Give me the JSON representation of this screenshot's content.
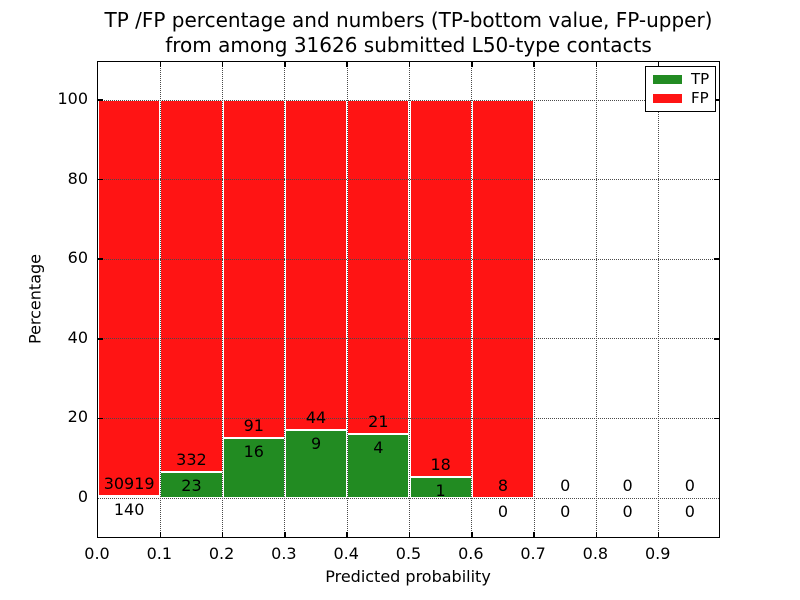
{
  "figure": {
    "title_line1": "TP /FP percentage and numbers (TP-bottom value, FP-upper)",
    "title_line2": "from among 31626 submitted L50-type contacts",
    "xlabel": "Predicted probability",
    "ylabel": "Percentage"
  },
  "legend": {
    "items": [
      {
        "label": "TP",
        "color": "#228b22"
      },
      {
        "label": "FP",
        "color": "#ff1414"
      }
    ]
  },
  "chart_data": {
    "type": "bar",
    "subtype": "stacked-100-percent",
    "title": "TP /FP percentage and numbers (TP-bottom value, FP-upper) from among 31626 submitted L50-type contacts",
    "xlabel": "Predicted probability",
    "ylabel": "Percentage",
    "total_submitted_contacts": 31626,
    "annotation_scheme": "TP count below green/red boundary, FP count above it",
    "bins": [
      {
        "range": [
          0.0,
          0.1
        ],
        "tp": 140,
        "fp": 30919
      },
      {
        "range": [
          0.1,
          0.2
        ],
        "tp": 23,
        "fp": 332
      },
      {
        "range": [
          0.2,
          0.3
        ],
        "tp": 16,
        "fp": 91
      },
      {
        "range": [
          0.3,
          0.4
        ],
        "tp": 9,
        "fp": 44
      },
      {
        "range": [
          0.4,
          0.5
        ],
        "tp": 4,
        "fp": 21
      },
      {
        "range": [
          0.5,
          0.6
        ],
        "tp": 1,
        "fp": 18
      },
      {
        "range": [
          0.6,
          0.7
        ],
        "tp": 0,
        "fp": 8
      },
      {
        "range": [
          0.7,
          0.8
        ],
        "tp": 0,
        "fp": 0
      },
      {
        "range": [
          0.8,
          0.9
        ],
        "tp": 0,
        "fp": 0
      },
      {
        "range": [
          0.9,
          1.0
        ],
        "tp": 0,
        "fp": 0
      }
    ],
    "x_ticks": [
      "0.0",
      "0.1",
      "0.2",
      "0.3",
      "0.4",
      "0.5",
      "0.6",
      "0.7",
      "0.8",
      "0.9"
    ],
    "y_ticks": [
      0,
      20,
      40,
      60,
      80,
      100
    ],
    "xlim": [
      0.0,
      1.0
    ],
    "ylim": [
      -10.5,
      110
    ],
    "grid": "dotted-both-axes",
    "legend_position": "upper-right",
    "colors": {
      "tp": "#228b22",
      "fp": "#ff1414",
      "bar_edge": "#ffffff"
    }
  }
}
